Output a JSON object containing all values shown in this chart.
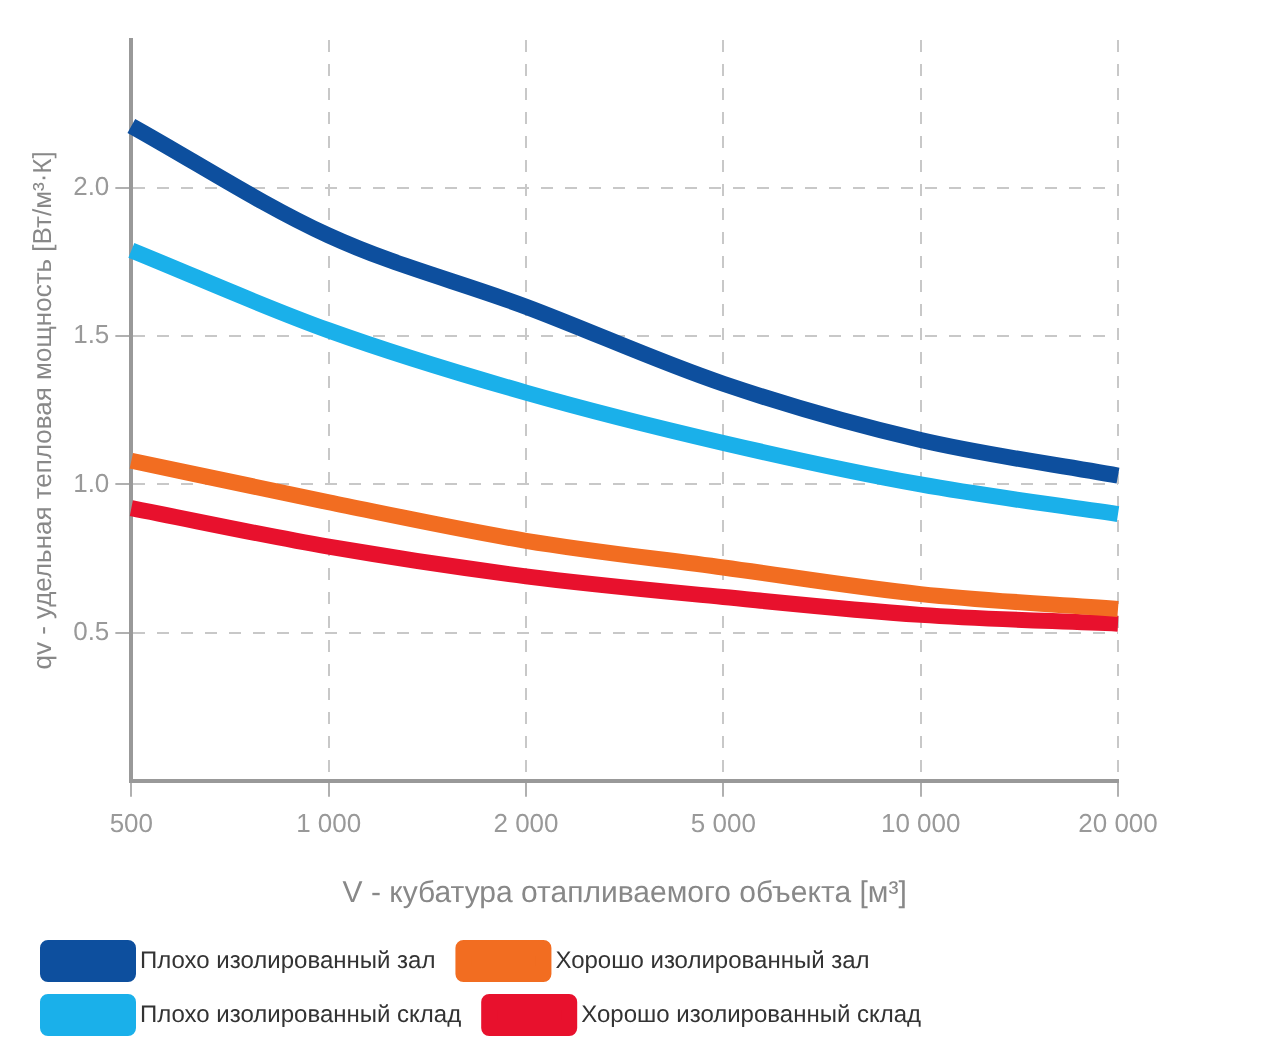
{
  "chart_data": {
    "type": "line",
    "xlabel": "V - кубатура отапливаемого объекта [м³]",
    "ylabel": "qv - удельная тепловая мощность [Вт/м³·К]",
    "categories": [
      "500",
      "1 000",
      "2 000",
      "5 000",
      "10 000",
      "20 000"
    ],
    "ylim": [
      0,
      2.5
    ],
    "yticks": [
      0.5,
      {
        "value": 1,
        "label": "1.0"
      },
      1.5,
      {
        "value": 2,
        "label": "2.0"
      }
    ],
    "grid": true,
    "legend": "bottom",
    "marker": "none",
    "line_style": "solid",
    "series": [
      {
        "name": "Плохо изолированный зал",
        "color": "#0d4f9e",
        "values": [
          2.21,
          1.84,
          1.6,
          1.34,
          1.15,
          1.03
        ]
      },
      {
        "name": "Плохо изолированный склад",
        "color": "#1ab0ea",
        "values": [
          1.79,
          1.52,
          1.31,
          1.14,
          1.0,
          0.9
        ]
      },
      {
        "name": "Хорошо изолированный зал",
        "color": "#f26d21",
        "values": [
          1.08,
          0.94,
          0.81,
          0.72,
          0.63,
          0.58
        ]
      },
      {
        "name": "Хорошо изолированный склад",
        "color": "#e8112d",
        "values": [
          0.92,
          0.79,
          0.69,
          0.62,
          0.56,
          0.53
        ]
      }
    ]
  }
}
